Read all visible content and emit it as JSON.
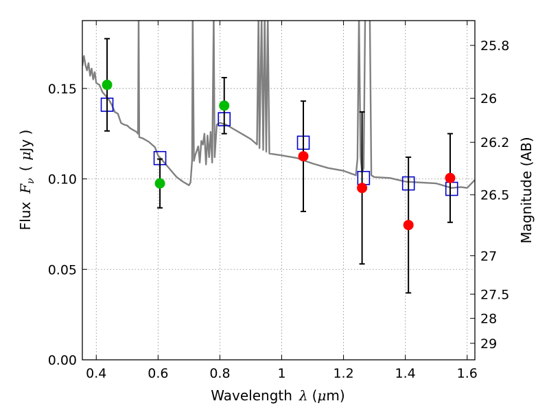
{
  "chart_data": {
    "type": "scatter",
    "title": "",
    "xlabel": "Wavelength",
    "xlabel_symbol": "λ",
    "xlabel_unit_open": "(",
    "xlabel_unit_mu": "μ",
    "xlabel_unit_rest": "m)",
    "ylabel": "Flux",
    "ylabel_symbol": "F",
    "ylabel_sub": "ν",
    "ylabel_unit_open": "(",
    "ylabel_unit_mu": "μ",
    "ylabel_unit_rest": "Jy )",
    "y2label": "Magnitude (AB)",
    "xlim": [
      0.355,
      1.625
    ],
    "ylim": [
      0.0,
      0.1875
    ],
    "grid": true,
    "x_ticks": [
      {
        "v": 0.4,
        "label": "0.4"
      },
      {
        "v": 0.6,
        "label": "0.6"
      },
      {
        "v": 0.8,
        "label": "0.8"
      },
      {
        "v": 1.0,
        "label": "1"
      },
      {
        "v": 1.2,
        "label": "1.2"
      },
      {
        "v": 1.4,
        "label": "1.4"
      },
      {
        "v": 1.6,
        "label": "1.6"
      }
    ],
    "y_ticks": [
      {
        "v": 0.0,
        "label": "0.00"
      },
      {
        "v": 0.05,
        "label": "0.05"
      },
      {
        "v": 0.1,
        "label": "0.10"
      },
      {
        "v": 0.15,
        "label": "0.15"
      }
    ],
    "y2_ticks": [
      {
        "mag": 25.8,
        "label": "25.8"
      },
      {
        "mag": 26.0,
        "label": "26"
      },
      {
        "mag": 26.2,
        "label": "26.2"
      },
      {
        "mag": 26.5,
        "label": "26.5"
      },
      {
        "mag": 27.0,
        "label": "27"
      },
      {
        "mag": 27.5,
        "label": "27.5"
      },
      {
        "mag": 28.0,
        "label": "28"
      },
      {
        "mag": 29.0,
        "label": "29"
      }
    ],
    "colors": {
      "template": "#808080",
      "green": "#00bb00",
      "red": "#ff0000",
      "model_box": "#0000cc",
      "errorbar": "#000000",
      "grid": "#808080"
    },
    "observed_green": [
      {
        "x": 0.435,
        "y": 0.152,
        "err": 0.0255
      },
      {
        "x": 0.606,
        "y": 0.0975,
        "err": 0.0135
      },
      {
        "x": 0.814,
        "y": 0.1405,
        "err": 0.0155
      }
    ],
    "observed_red": [
      {
        "x": 1.07,
        "y": 0.1125,
        "err": 0.0305
      },
      {
        "x": 1.26,
        "y": 0.095,
        "err": 0.042
      },
      {
        "x": 1.41,
        "y": 0.0745,
        "err": 0.0375
      },
      {
        "x": 1.545,
        "y": 0.1005,
        "err": 0.0245
      }
    ],
    "model_fluxes": [
      {
        "x": 0.435,
        "y": 0.141
      },
      {
        "x": 0.606,
        "y": 0.1115
      },
      {
        "x": 0.814,
        "y": 0.133
      },
      {
        "x": 1.07,
        "y": 0.12
      },
      {
        "x": 1.265,
        "y": 0.1005
      },
      {
        "x": 1.41,
        "y": 0.0975
      },
      {
        "x": 1.55,
        "y": 0.0945
      }
    ],
    "template_spectrum": [
      [
        0.355,
        0.1625
      ],
      [
        0.36,
        0.168
      ],
      [
        0.365,
        0.163
      ],
      [
        0.37,
        0.16
      ],
      [
        0.375,
        0.164
      ],
      [
        0.38,
        0.157
      ],
      [
        0.385,
        0.161
      ],
      [
        0.39,
        0.155
      ],
      [
        0.395,
        0.159
      ],
      [
        0.4,
        0.153
      ],
      [
        0.41,
        0.152
      ],
      [
        0.42,
        0.148
      ],
      [
        0.43,
        0.146
      ],
      [
        0.44,
        0.144
      ],
      [
        0.45,
        0.141
      ],
      [
        0.46,
        0.137
      ],
      [
        0.47,
        0.136
      ],
      [
        0.48,
        0.131
      ],
      [
        0.49,
        0.13
      ],
      [
        0.5,
        0.1295
      ],
      [
        0.51,
        0.128
      ],
      [
        0.52,
        0.127
      ],
      [
        0.53,
        0.126
      ],
      [
        0.535,
        0.125
      ],
      [
        0.537,
        0.19
      ],
      [
        0.539,
        0.123
      ],
      [
        0.55,
        0.1225
      ],
      [
        0.57,
        0.1205
      ],
      [
        0.59,
        0.1175
      ],
      [
        0.6,
        0.113
      ],
      [
        0.62,
        0.109
      ],
      [
        0.64,
        0.105
      ],
      [
        0.66,
        0.101
      ],
      [
        0.68,
        0.0985
      ],
      [
        0.7,
        0.0965
      ],
      [
        0.705,
        0.098
      ],
      [
        0.71,
        0.11
      ],
      [
        0.712,
        0.19
      ],
      [
        0.716,
        0.11
      ],
      [
        0.72,
        0.113
      ],
      [
        0.73,
        0.118
      ],
      [
        0.735,
        0.109
      ],
      [
        0.74,
        0.121
      ],
      [
        0.745,
        0.119
      ],
      [
        0.75,
        0.125
      ],
      [
        0.755,
        0.108
      ],
      [
        0.76,
        0.124
      ],
      [
        0.765,
        0.112
      ],
      [
        0.77,
        0.126
      ],
      [
        0.775,
        0.109
      ],
      [
        0.78,
        0.19
      ],
      [
        0.783,
        0.112
      ],
      [
        0.79,
        0.13
      ],
      [
        0.8,
        0.131
      ],
      [
        0.82,
        0.13
      ],
      [
        0.85,
        0.127
      ],
      [
        0.88,
        0.124
      ],
      [
        0.9,
        0.122
      ],
      [
        0.92,
        0.119
      ],
      [
        0.925,
        0.19
      ],
      [
        0.928,
        0.117
      ],
      [
        0.935,
        0.19
      ],
      [
        0.94,
        0.116
      ],
      [
        0.945,
        0.19
      ],
      [
        0.95,
        0.115
      ],
      [
        0.955,
        0.19
      ],
      [
        0.96,
        0.114
      ],
      [
        1.0,
        0.113
      ],
      [
        1.05,
        0.1115
      ],
      [
        1.1,
        0.1085
      ],
      [
        1.15,
        0.106
      ],
      [
        1.2,
        0.1045
      ],
      [
        1.24,
        0.102
      ],
      [
        1.245,
        0.111
      ],
      [
        1.25,
        0.19
      ],
      [
        1.255,
        0.112
      ],
      [
        1.26,
        0.1035
      ],
      [
        1.265,
        0.106
      ],
      [
        1.27,
        0.19
      ],
      [
        1.285,
        0.19
      ],
      [
        1.29,
        0.102
      ],
      [
        1.3,
        0.101
      ],
      [
        1.35,
        0.1005
      ],
      [
        1.4,
        0.0985
      ],
      [
        1.45,
        0.098
      ],
      [
        1.5,
        0.0975
      ],
      [
        1.55,
        0.095
      ],
      [
        1.58,
        0.0955
      ],
      [
        1.6,
        0.095
      ],
      [
        1.625,
        0.0995
      ]
    ]
  }
}
